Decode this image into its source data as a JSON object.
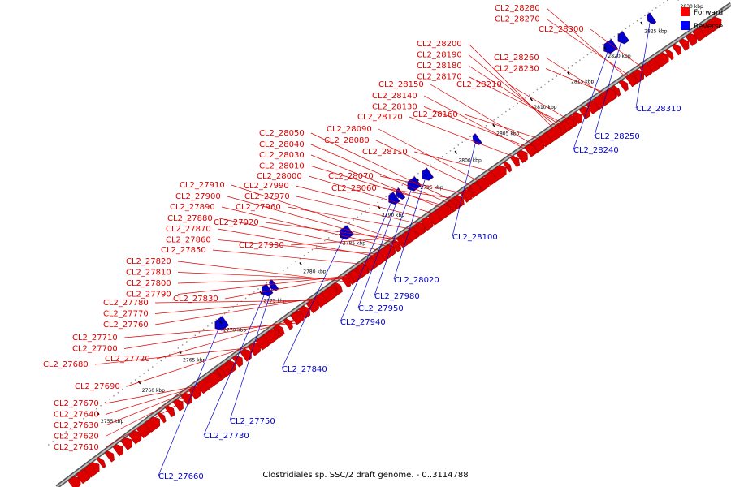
{
  "title": "Clostridiales sp. SSC/2 draft genome. - 0..3114788",
  "legend": [
    {
      "label": "Forward",
      "color": "#ff0000"
    },
    {
      "label": "Reverse",
      "color": "#0000ff"
    }
  ],
  "colors": {
    "forward": "#ff0000",
    "reverse": "#0000ff",
    "forward_label": "#dd0000",
    "reverse_label": "#0000cc",
    "axis": "#888888"
  },
  "kbp_ticks": [
    "2755 kbp",
    "2760 kbp",
    "2765 kbp",
    "2770 kbp",
    "2775 kbp",
    "2780 kbp",
    "2785 kbp",
    "2790 kbp",
    "2795 kbp",
    "2800 kbp",
    "2805 kbp",
    "2810 kbp",
    "2815 kbp",
    "2820 kbp",
    "2825 kbp",
    "2830 kbp"
  ],
  "forward_genes": [
    "CL2_28280",
    "CL2_28270",
    "CL2_28300",
    "CL2_28200",
    "CL2_28190",
    "CL2_28180",
    "CL2_28170",
    "CL2_28260",
    "CL2_28230",
    "CL2_28150",
    "CL2_28210",
    "CL2_28140",
    "CL2_28130",
    "CL2_28160",
    "CL2_28120",
    "CL2_28090",
    "CL2_28050",
    "CL2_28080",
    "CL2_28040",
    "CL2_28110",
    "CL2_28030",
    "CL2_28010",
    "CL2_28070",
    "CL2_28000",
    "CL2_28060",
    "CL2_27910",
    "CL2_27990",
    "CL2_27900",
    "CL2_27970",
    "CL2_27890",
    "CL2_27960",
    "CL2_27880",
    "CL2_27920",
    "CL2_27870",
    "CL2_27860",
    "CL2_27930",
    "CL2_27850",
    "CL2_27820",
    "CL2_27810",
    "CL2_27800",
    "CL2_27790",
    "CL2_27830",
    "CL2_27780",
    "CL2_27770",
    "CL2_27760",
    "CL2_27710",
    "CL2_27700",
    "CL2_27720",
    "CL2_27680",
    "CL2_27690",
    "CL2_27670",
    "CL2_27640",
    "CL2_27630",
    "CL2_27620",
    "CL2_27610"
  ],
  "reverse_genes": [
    "CL2_28310",
    "CL2_28250",
    "CL2_28240",
    "CL2_28100",
    "CL2_28020",
    "CL2_27980",
    "CL2_27950",
    "CL2_27940",
    "CL2_27840",
    "CL2_27750",
    "CL2_27730",
    "CL2_27660"
  ]
}
